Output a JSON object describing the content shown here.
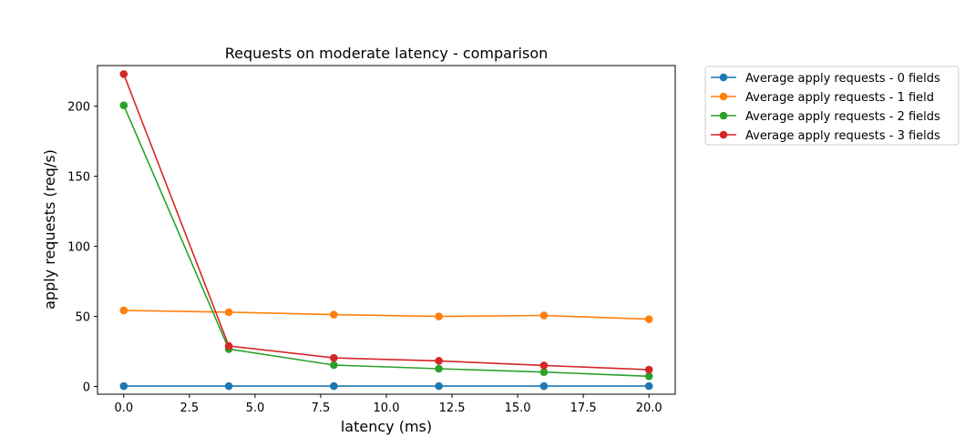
{
  "chart_data": {
    "type": "line",
    "title": "Requests on moderate latency - comparison",
    "xlabel": "latency (ms)",
    "ylabel": "apply requests (req/s)",
    "x": [
      0,
      4,
      8,
      12,
      16,
      20
    ],
    "xlim": [
      -1,
      21
    ],
    "ylim": [
      -5.5,
      229
    ],
    "xticks": [
      "0.0",
      "2.5",
      "5.0",
      "7.5",
      "10.0",
      "12.5",
      "15.0",
      "17.5",
      "20.0"
    ],
    "yticks": [
      "0",
      "50",
      "100",
      "150",
      "200"
    ],
    "grid": false,
    "legend_placement": "outside top-right",
    "series": [
      {
        "name": "Average apply requests - 0 fields",
        "color": "#1f77b4",
        "values": [
          0.3,
          0.3,
          0.3,
          0.3,
          0.3,
          0.3
        ]
      },
      {
        "name": "Average apply requests - 1 field",
        "color": "#ff7f0e",
        "values": [
          54.3,
          53.0,
          51.3,
          50.0,
          50.7,
          48.0
        ]
      },
      {
        "name": "Average apply requests - 2 fields",
        "color": "#2ca02c",
        "values": [
          200.6,
          26.7,
          15.3,
          12.7,
          10.3,
          7.3
        ]
      },
      {
        "name": "Average apply requests - 3 fields",
        "color": "#d62728",
        "values": [
          222.9,
          28.9,
          20.4,
          18.3,
          15.0,
          12.0
        ]
      }
    ]
  }
}
